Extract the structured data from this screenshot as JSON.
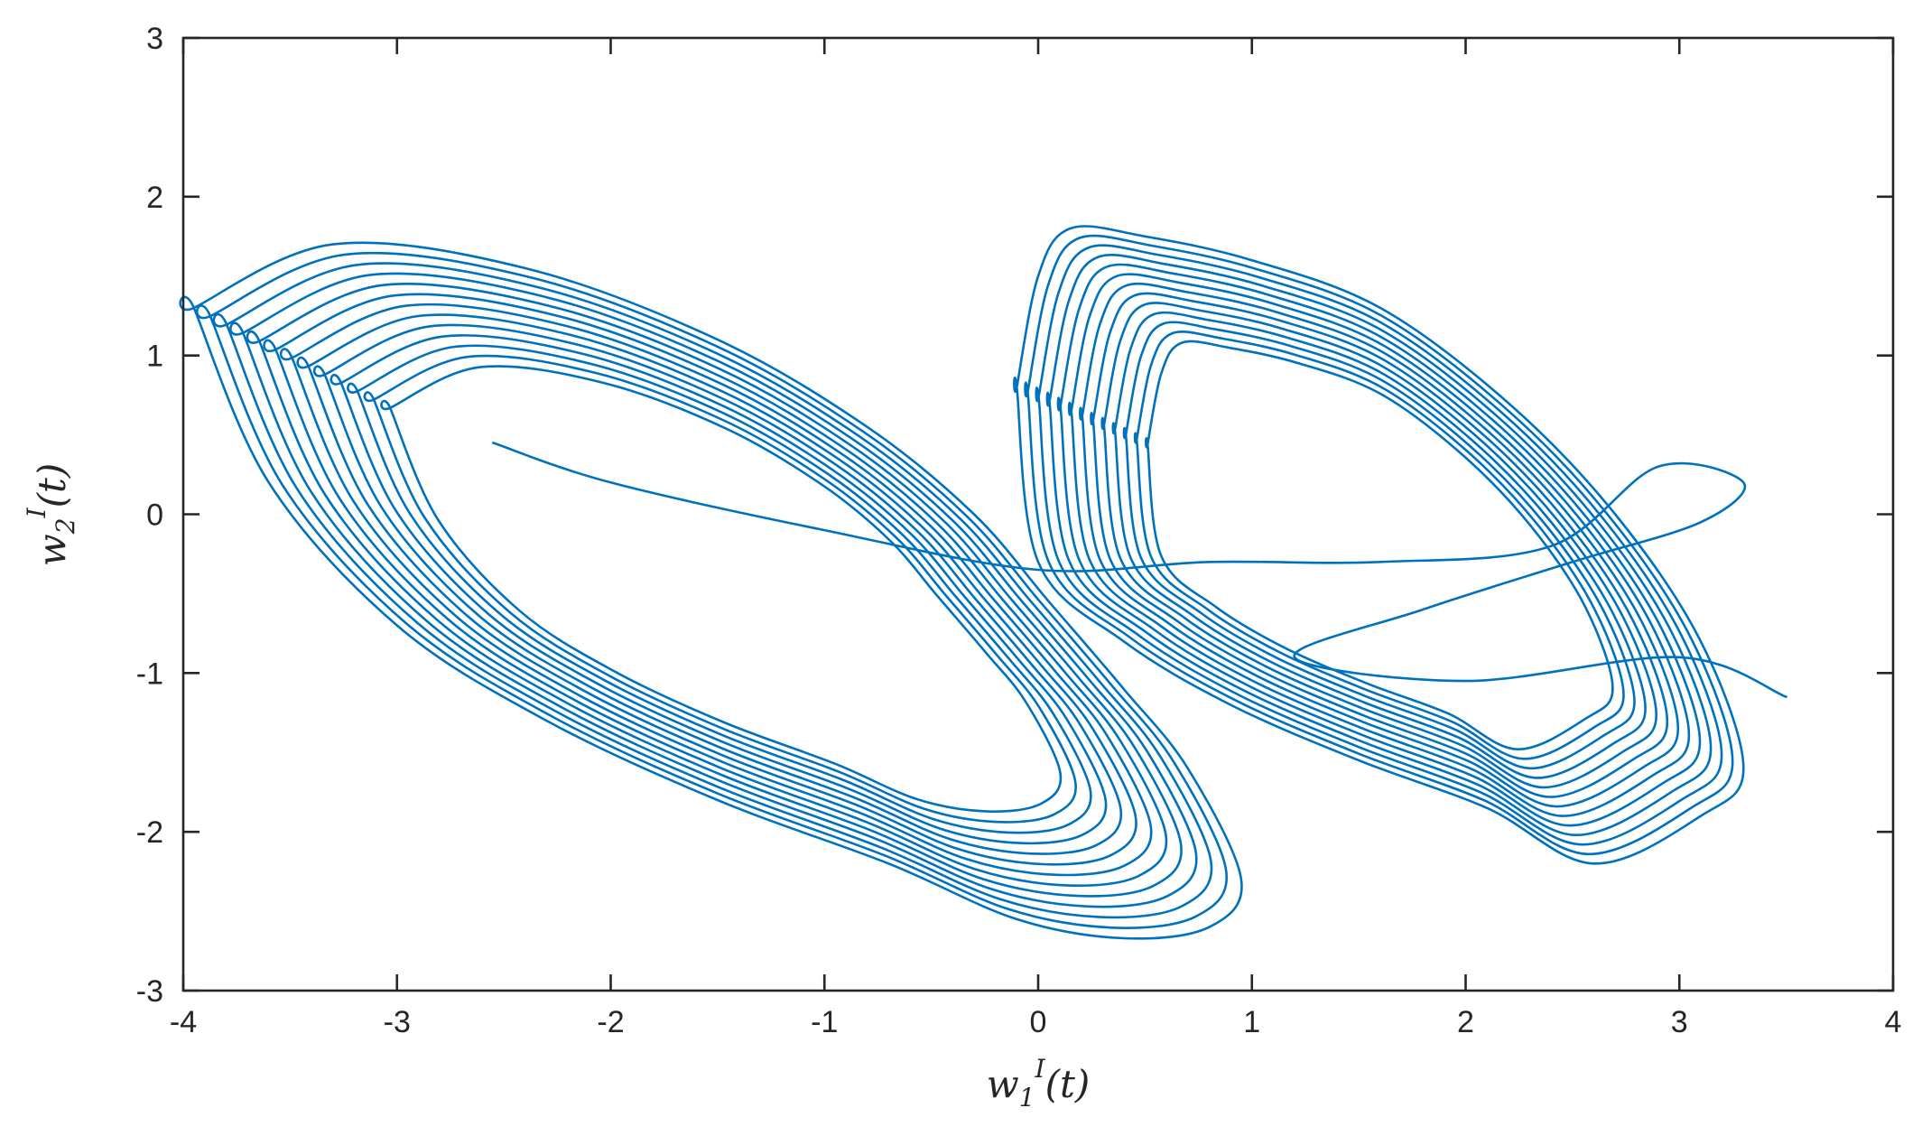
{
  "chart_data": {
    "type": "line",
    "title": "",
    "xlabel": "w_1^I(t)",
    "ylabel": "w_2^I(t)",
    "xlim": [
      -4,
      4
    ],
    "ylim": [
      -3,
      3
    ],
    "xticks": [
      -4,
      -3,
      -2,
      -1,
      0,
      1,
      2,
      3,
      4
    ],
    "yticks": [
      -3,
      -2,
      -1,
      0,
      1,
      2,
      3
    ],
    "xtick_labels": [
      "-4",
      "-3",
      "-2",
      "-1",
      "0",
      "1",
      "2",
      "3",
      "4"
    ],
    "ytick_labels": [
      "-3",
      "-2",
      "-1",
      "0",
      "1",
      "2",
      "3"
    ],
    "grid": false,
    "line_color": "#0072bd",
    "series": [
      {
        "name": "",
        "style": "double-scroll chaotic attractor trajectory",
        "approx_extent": {
          "x": [
            -3.95,
            3.5
          ],
          "y": [
            -2.67,
            2.35
          ]
        },
        "left_lobe": {
          "x": [
            -3.95,
            -3.3,
            -2.4,
            -1.5,
            -0.8,
            -0.3,
            0.05,
            0.4,
            0.7,
            0.95,
            0.8,
            0.4,
            -0.1,
            -0.7,
            -1.5,
            -2.3,
            -3.0,
            -3.6,
            -3.95
          ],
          "y": [
            1.3,
            1.7,
            1.55,
            1.1,
            0.55,
            0.0,
            -0.55,
            -1.1,
            -1.6,
            -2.3,
            -2.6,
            -2.67,
            -2.55,
            -2.2,
            -1.8,
            -1.3,
            -0.7,
            0.2,
            1.3
          ]
        },
        "right_lobe": {
          "x": [
            -0.1,
            0.0,
            0.15,
            0.5,
            1.0,
            1.6,
            2.2,
            2.7,
            3.1,
            3.3,
            3.1,
            2.6,
            2.1,
            1.5,
            0.9,
            0.4,
            0.0,
            -0.1
          ],
          "y": [
            0.8,
            1.5,
            1.8,
            1.75,
            1.6,
            1.3,
            0.7,
            0.0,
            -0.8,
            -1.6,
            -1.9,
            -2.2,
            -1.85,
            -1.55,
            -1.2,
            -0.8,
            -0.3,
            0.8
          ]
        },
        "transient": {
          "x": [
            -2.55,
            -2.0,
            -1.0,
            0.0,
            0.8,
            1.6,
            2.4,
            2.9,
            3.3,
            3.1,
            2.5,
            1.8,
            1.2,
            2.0,
            3.0,
            3.5
          ],
          "y": [
            0.45,
            0.2,
            -0.1,
            -0.35,
            -0.3,
            -0.3,
            -0.2,
            0.3,
            0.2,
            -0.05,
            -0.3,
            -0.6,
            -0.9,
            -1.05,
            -0.9,
            -1.15
          ]
        }
      }
    ]
  }
}
